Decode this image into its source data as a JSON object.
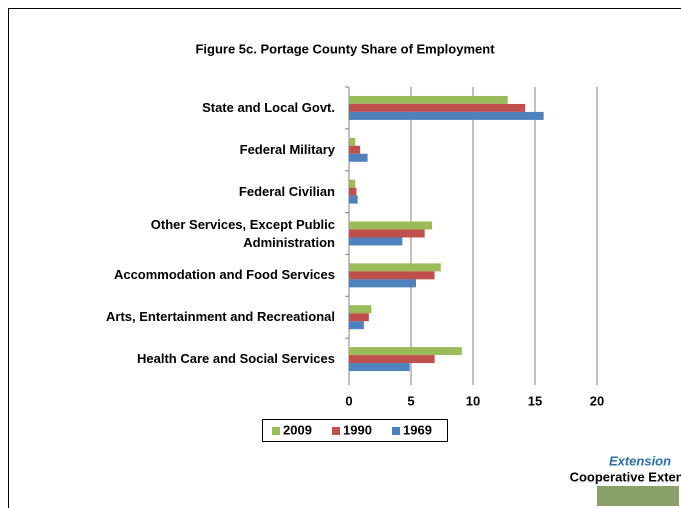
{
  "chart_data": {
    "type": "bar",
    "orientation": "horizontal",
    "title": "Figure 5c. Portage County Share of Employment",
    "categories": [
      "State and Local Govt.",
      "Federal Military",
      "Federal Civilian",
      "Other Services, Except Public Administration",
      "Accommodation and Food Services",
      "Arts, Entertainment and Recreational",
      "Health Care and Social Services"
    ],
    "series": [
      {
        "name": "2009",
        "color": "#9bbb59",
        "values": [
          12.8,
          0.5,
          0.5,
          6.7,
          7.4,
          1.8,
          9.1
        ]
      },
      {
        "name": "1990",
        "color": "#c0504d",
        "values": [
          14.2,
          0.9,
          0.6,
          6.1,
          6.9,
          1.6,
          6.9
        ]
      },
      {
        "name": "1969",
        "color": "#4f81bd",
        "values": [
          15.7,
          1.5,
          0.7,
          4.3,
          5.4,
          1.2,
          4.9
        ]
      }
    ],
    "xlim": [
      0,
      20
    ],
    "xticks": [
      0,
      5,
      10,
      15,
      20
    ],
    "grid": true,
    "legend": "bottom"
  },
  "logo": {
    "title": "Extension",
    "subtitle": "Cooperative Extension"
  }
}
